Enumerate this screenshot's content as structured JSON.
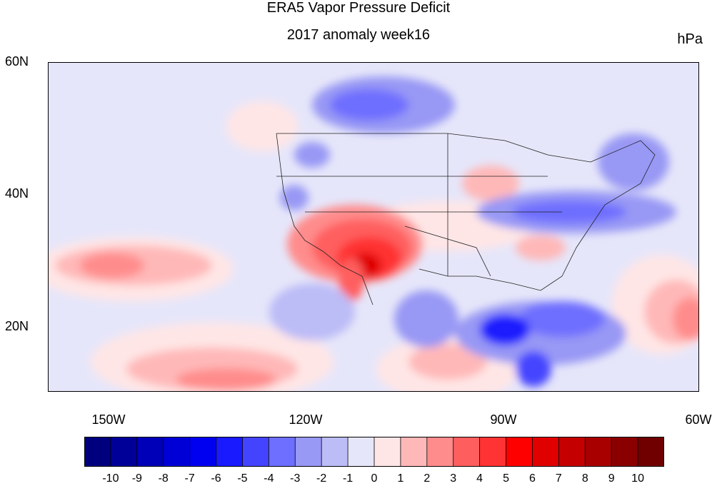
{
  "title": "ERA5 Vapor Pressure Deficit",
  "subtitle": "2017 anomaly week16",
  "units": "hPa",
  "lat_labels": [
    "60N",
    "40N",
    "20N"
  ],
  "lon_labels": [
    "150W",
    "120W",
    "90W",
    "60W"
  ],
  "colorbar": {
    "labels": [
      "-10",
      "-9",
      "-8",
      "-7",
      "-6",
      "-5",
      "-4",
      "-3",
      "-2",
      "-1",
      "0",
      "1",
      "2",
      "3",
      "4",
      "5",
      "6",
      "7",
      "8",
      "9",
      "10"
    ],
    "colors": [
      "#00007f",
      "#000099",
      "#0000b8",
      "#0000d6",
      "#0000f0",
      "#1a1aff",
      "#4444ff",
      "#6e6eff",
      "#9898f5",
      "#bcbcf7",
      "#e6e6fa",
      "#ffe6e6",
      "#ffb8b8",
      "#ff8c8c",
      "#ff5e5e",
      "#ff3333",
      "#ff0000",
      "#e00000",
      "#c40000",
      "#a80000",
      "#8a0000",
      "#700000"
    ]
  },
  "map_colors": {
    "background_anomaly": "#e6e6fa",
    "land_outline": "#222222"
  }
}
